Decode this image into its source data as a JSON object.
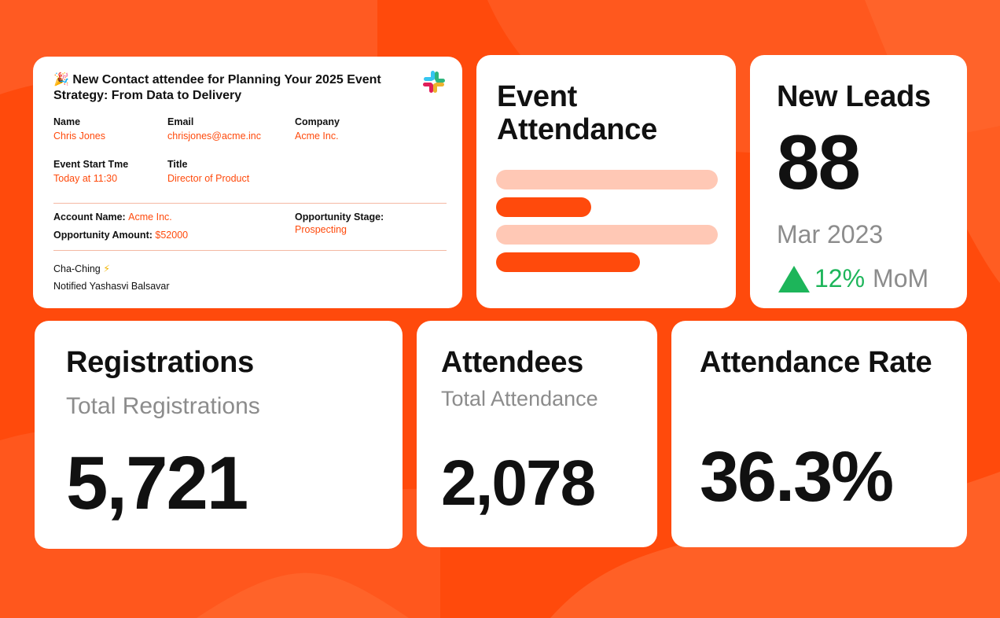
{
  "colors": {
    "accent": "#ff4a0c",
    "accent_light": "#ffc8b5",
    "positive": "#1db55a",
    "muted": "#8c8c8c"
  },
  "notification": {
    "icon": "party-popper-icon",
    "emoji": "🎉",
    "title": "New Contact attendee for Planning Your 2025 Event Strategy: From Data to Delivery",
    "app_icon": "slack-logo-icon",
    "fields": {
      "name_label": "Name",
      "name_value": "Chris Jones",
      "email_label": "Email",
      "email_value": "chrisjones@acme.inc",
      "company_label": "Company",
      "company_value": "Acme Inc.",
      "start_label": "Event Start Tme",
      "start_value": "Today at 11:30",
      "title_label": "Title",
      "title_value": "Director of Product"
    },
    "account": {
      "account_name_label": "Account Name:",
      "account_name_value": "Acme Inc.",
      "amount_label": "Opportunity Amount:",
      "amount_value": "$52000",
      "stage_label": "Opportunity Stage:",
      "stage_value": "Prospecting"
    },
    "footer": {
      "cha_ching": "Cha-Ching",
      "bolt": "⚡",
      "notified": "Notified Yashasvi Balsavar"
    }
  },
  "event_attendance": {
    "title_line1": "Event",
    "title_line2": "Attendance",
    "bars": [
      {
        "tone": "light",
        "fraction": 1.0
      },
      {
        "tone": "dark",
        "fraction": 0.43
      },
      {
        "tone": "light",
        "fraction": 1.0
      },
      {
        "tone": "dark",
        "fraction": 0.65
      }
    ]
  },
  "new_leads": {
    "title": "New Leads",
    "value": "88",
    "period": "Mar 2023",
    "trend_icon": "up-triangle-icon",
    "change": "12%",
    "change_unit": "MoM"
  },
  "registrations": {
    "title": "Registrations",
    "subtitle": "Total Registrations",
    "value": "5,721"
  },
  "attendees": {
    "title": "Attendees",
    "subtitle": "Total Attendance",
    "value": "2,078"
  },
  "attendance_rate": {
    "title": "Attendance Rate",
    "value": "36.3%"
  }
}
